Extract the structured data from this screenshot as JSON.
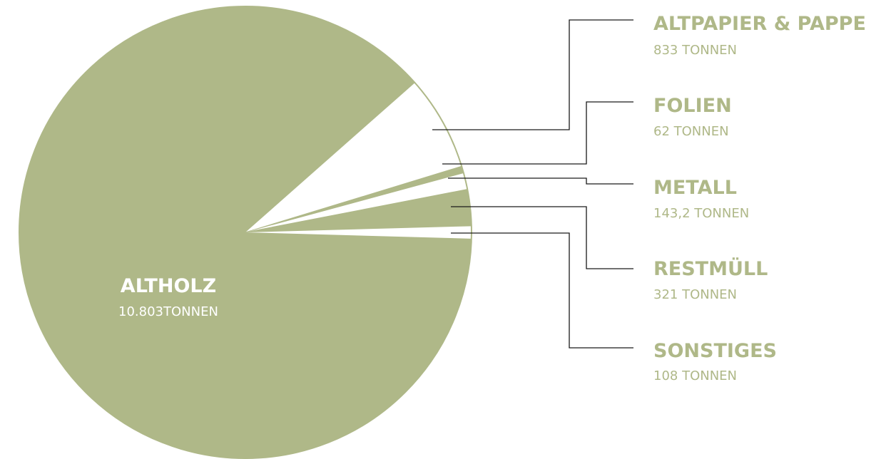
{
  "chart_data": {
    "type": "pie",
    "unit": "TONNEN",
    "slices": [
      {
        "name": "ALTHOLZ",
        "value": 10803,
        "value_label": "10.803TONNEN",
        "filled": true
      },
      {
        "name": "ALTPAPIER & PAPPE",
        "value": 833,
        "value_label": "833 TONNEN",
        "filled": false
      },
      {
        "name": "FOLIEN",
        "value": 62,
        "value_label": "62 TONNEN",
        "filled": true
      },
      {
        "name": "METALL",
        "value": 143.2,
        "value_label": "143,2 TONNEN",
        "filled": false
      },
      {
        "name": "RESTMÜLL",
        "value": 321,
        "value_label": "321 TONNEN",
        "filled": true
      },
      {
        "name": "SONSTIGES",
        "value": 108,
        "value_label": "108 TONNEN",
        "filled": false
      }
    ],
    "colors": {
      "fill": "#afb888",
      "empty": "#ffffff",
      "text": "#afb888",
      "leader": "#1a1a1a"
    },
    "legend": "right"
  }
}
